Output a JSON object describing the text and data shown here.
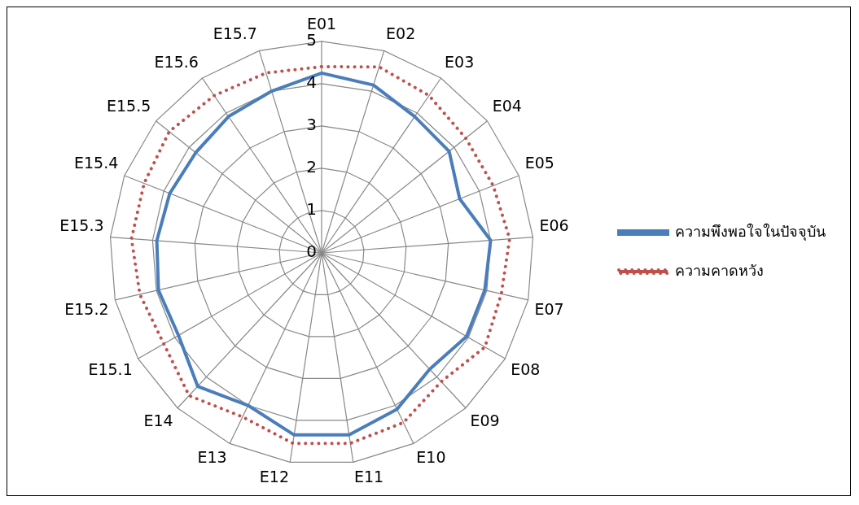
{
  "chart_data": {
    "type": "radar",
    "categories": [
      "E01",
      "E02",
      "E03",
      "E04",
      "E05",
      "E06",
      "E07",
      "E08",
      "E09",
      "E10",
      "E11",
      "E12",
      "E13",
      "E14",
      "E15.1",
      "E15.2",
      "E15.3",
      "E15.4",
      "E15.5",
      "E15.6",
      "E15.7"
    ],
    "series": [
      {
        "name": "ความพึงพอใจในปัจจุบัน",
        "color": "#4a7ebb",
        "line_style": "solid",
        "values": [
          4.25,
          4.15,
          3.9,
          3.85,
          3.5,
          4.0,
          3.95,
          3.95,
          3.75,
          4.1,
          4.35,
          4.35,
          4.0,
          4.3,
          3.9,
          3.95,
          3.9,
          3.85,
          3.8,
          3.9,
          4.0
        ]
      },
      {
        "name": "ความคาดหวัง",
        "color": "#c0504d",
        "line_style": "dotted",
        "values": [
          4.4,
          4.6,
          4.5,
          4.35,
          4.35,
          4.45,
          4.35,
          4.45,
          4.15,
          4.45,
          4.55,
          4.55,
          4.3,
          4.6,
          4.3,
          4.4,
          4.5,
          4.5,
          4.6,
          4.5,
          4.45
        ]
      }
    ],
    "ylim": [
      0,
      5
    ],
    "yticks": [
      0,
      1,
      2,
      3,
      4,
      5
    ],
    "grid": true,
    "legend": "right",
    "marker": "none"
  }
}
